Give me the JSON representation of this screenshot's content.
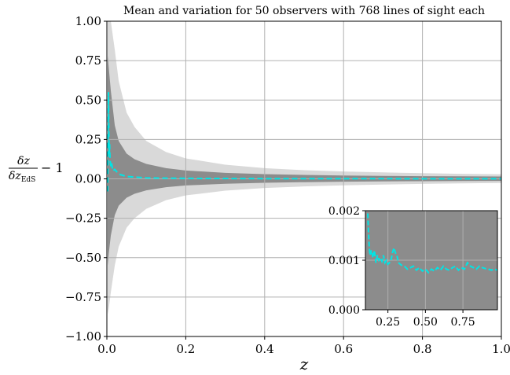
{
  "chart_data": [
    {
      "type": "area",
      "title": "Mean and variation for 50 observers with 768 lines of sight each",
      "xlabel": "z",
      "ylabel": {
        "numerator": "δz",
        "denominator": "δz",
        "denominator_subscript": "EdS",
        "suffix": "− 1"
      },
      "xlim": [
        0.0,
        1.0
      ],
      "ylim": [
        -1.0,
        1.0
      ],
      "grid": true,
      "xticks": [
        "0.0",
        "0.2",
        "0.4",
        "0.6",
        "0.8",
        "1.0"
      ],
      "yticks": [
        "−1.00",
        "−0.75",
        "−0.50",
        "−0.25",
        "0.00",
        "0.25",
        "0.50",
        "0.75",
        "1.00"
      ],
      "x": [
        0.002,
        0.005,
        0.01,
        0.02,
        0.03,
        0.05,
        0.07,
        0.1,
        0.15,
        0.2,
        0.3,
        0.4,
        0.5,
        0.6,
        0.7,
        0.8,
        0.9,
        1.0
      ],
      "series": [
        {
          "band": "outer",
          "color": "#d9d9d9",
          "upper": [
            1.0,
            1.0,
            1.0,
            0.82,
            0.62,
            0.42,
            0.33,
            0.24,
            0.17,
            0.13,
            0.09,
            0.068,
            0.055,
            0.047,
            0.041,
            0.036,
            0.032,
            0.029
          ],
          "lower": [
            -0.86,
            -0.82,
            -0.72,
            -0.55,
            -0.43,
            -0.31,
            -0.25,
            -0.19,
            -0.135,
            -0.105,
            -0.075,
            -0.058,
            -0.048,
            -0.041,
            -0.036,
            -0.032,
            -0.029,
            -0.026
          ]
        },
        {
          "band": "inner",
          "color": "#8c8c8c",
          "upper": [
            0.78,
            0.7,
            0.56,
            0.34,
            0.24,
            0.16,
            0.125,
            0.095,
            0.068,
            0.053,
            0.038,
            0.03,
            0.025,
            0.021,
            0.019,
            0.017,
            0.016,
            0.015
          ],
          "lower": [
            -0.55,
            -0.47,
            -0.36,
            -0.23,
            -0.17,
            -0.12,
            -0.095,
            -0.073,
            -0.053,
            -0.042,
            -0.031,
            -0.025,
            -0.021,
            -0.018,
            -0.016,
            -0.015,
            -0.014,
            -0.013
          ]
        },
        {
          "band": "mean",
          "color": "#00e5e5",
          "x": [
            0.002,
            0.003,
            0.004,
            0.005,
            0.006,
            0.007,
            0.008,
            0.01,
            0.012,
            0.015,
            0.02,
            0.03,
            0.05,
            0.1,
            0.2,
            0.4,
            0.6,
            0.8,
            1.0
          ],
          "values": [
            -0.08,
            0.25,
            0.55,
            0.28,
            0.15,
            0.22,
            0.12,
            0.08,
            0.1,
            0.05,
            0.06,
            0.03,
            0.015,
            0.006,
            0.003,
            0.0015,
            0.001,
            0.0009,
            0.0008
          ]
        }
      ]
    },
    {
      "type": "line",
      "role": "inset",
      "xlim": [
        0.1,
        0.98
      ],
      "ylim": [
        0.0,
        0.002
      ],
      "xticks": [
        "0.25",
        "0.50",
        "0.75"
      ],
      "yticks": [
        "0.000",
        "0.001",
        "0.002"
      ],
      "background": "#8c8c8c",
      "series": [
        {
          "color": "#00e5e5",
          "x": [
            0.1,
            0.11,
            0.12,
            0.125,
            0.13,
            0.14,
            0.15,
            0.16,
            0.17,
            0.18,
            0.19,
            0.2,
            0.21,
            0.22,
            0.23,
            0.24,
            0.25,
            0.26,
            0.27,
            0.28,
            0.29,
            0.3,
            0.31,
            0.32,
            0.34,
            0.36,
            0.38,
            0.4,
            0.42,
            0.44,
            0.46,
            0.48,
            0.5,
            0.52,
            0.54,
            0.56,
            0.58,
            0.6,
            0.62,
            0.64,
            0.66,
            0.68,
            0.7,
            0.72,
            0.74,
            0.76,
            0.78,
            0.8,
            0.82,
            0.84,
            0.86,
            0.88,
            0.9,
            0.92,
            0.94,
            0.96,
            0.98
          ],
          "values": [
            0.002,
            0.0024,
            0.0016,
            0.0013,
            0.0011,
            0.0012,
            0.00105,
            0.0012,
            0.00095,
            0.0011,
            0.001,
            0.00105,
            0.00098,
            0.0011,
            0.00095,
            0.001,
            0.00092,
            0.00095,
            0.00098,
            0.00115,
            0.00125,
            0.00115,
            0.0011,
            0.00095,
            0.0009,
            0.00088,
            0.00082,
            0.00085,
            0.00088,
            0.0008,
            0.00085,
            0.00078,
            0.00082,
            0.00075,
            0.00082,
            0.00078,
            0.00085,
            0.0008,
            0.00088,
            0.00082,
            0.0008,
            0.00085,
            0.00088,
            0.0008,
            0.00085,
            0.00082,
            0.00095,
            0.00088,
            0.00085,
            0.00082,
            0.00088,
            0.00085,
            0.00083,
            0.00082,
            0.0008,
            0.00082,
            0.0008
          ]
        }
      ]
    }
  ]
}
